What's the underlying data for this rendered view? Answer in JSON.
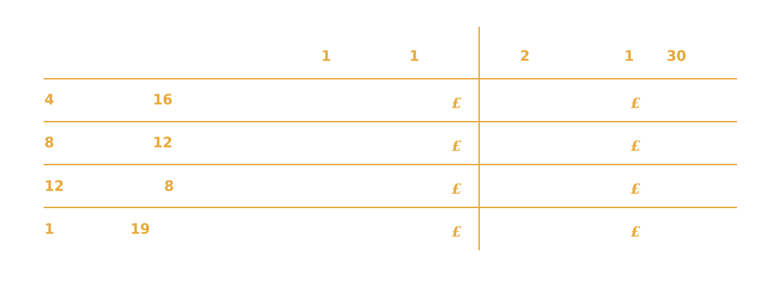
{
  "header": {
    "left": [
      "1",
      "1"
    ],
    "right": [
      "2",
      "1",
      "30"
    ]
  },
  "rows": [
    {
      "cells": [
        "4",
        "16"
      ],
      "left_price": "£",
      "right_price": "£"
    },
    {
      "cells": [
        "8",
        "12"
      ],
      "left_price": "£",
      "right_price": "£"
    },
    {
      "cells": [
        "12",
        "8"
      ],
      "left_price": "£",
      "right_price": "£"
    },
    {
      "cells": [
        "1",
        "19"
      ],
      "left_price": "£",
      "right_price": "£"
    }
  ]
}
